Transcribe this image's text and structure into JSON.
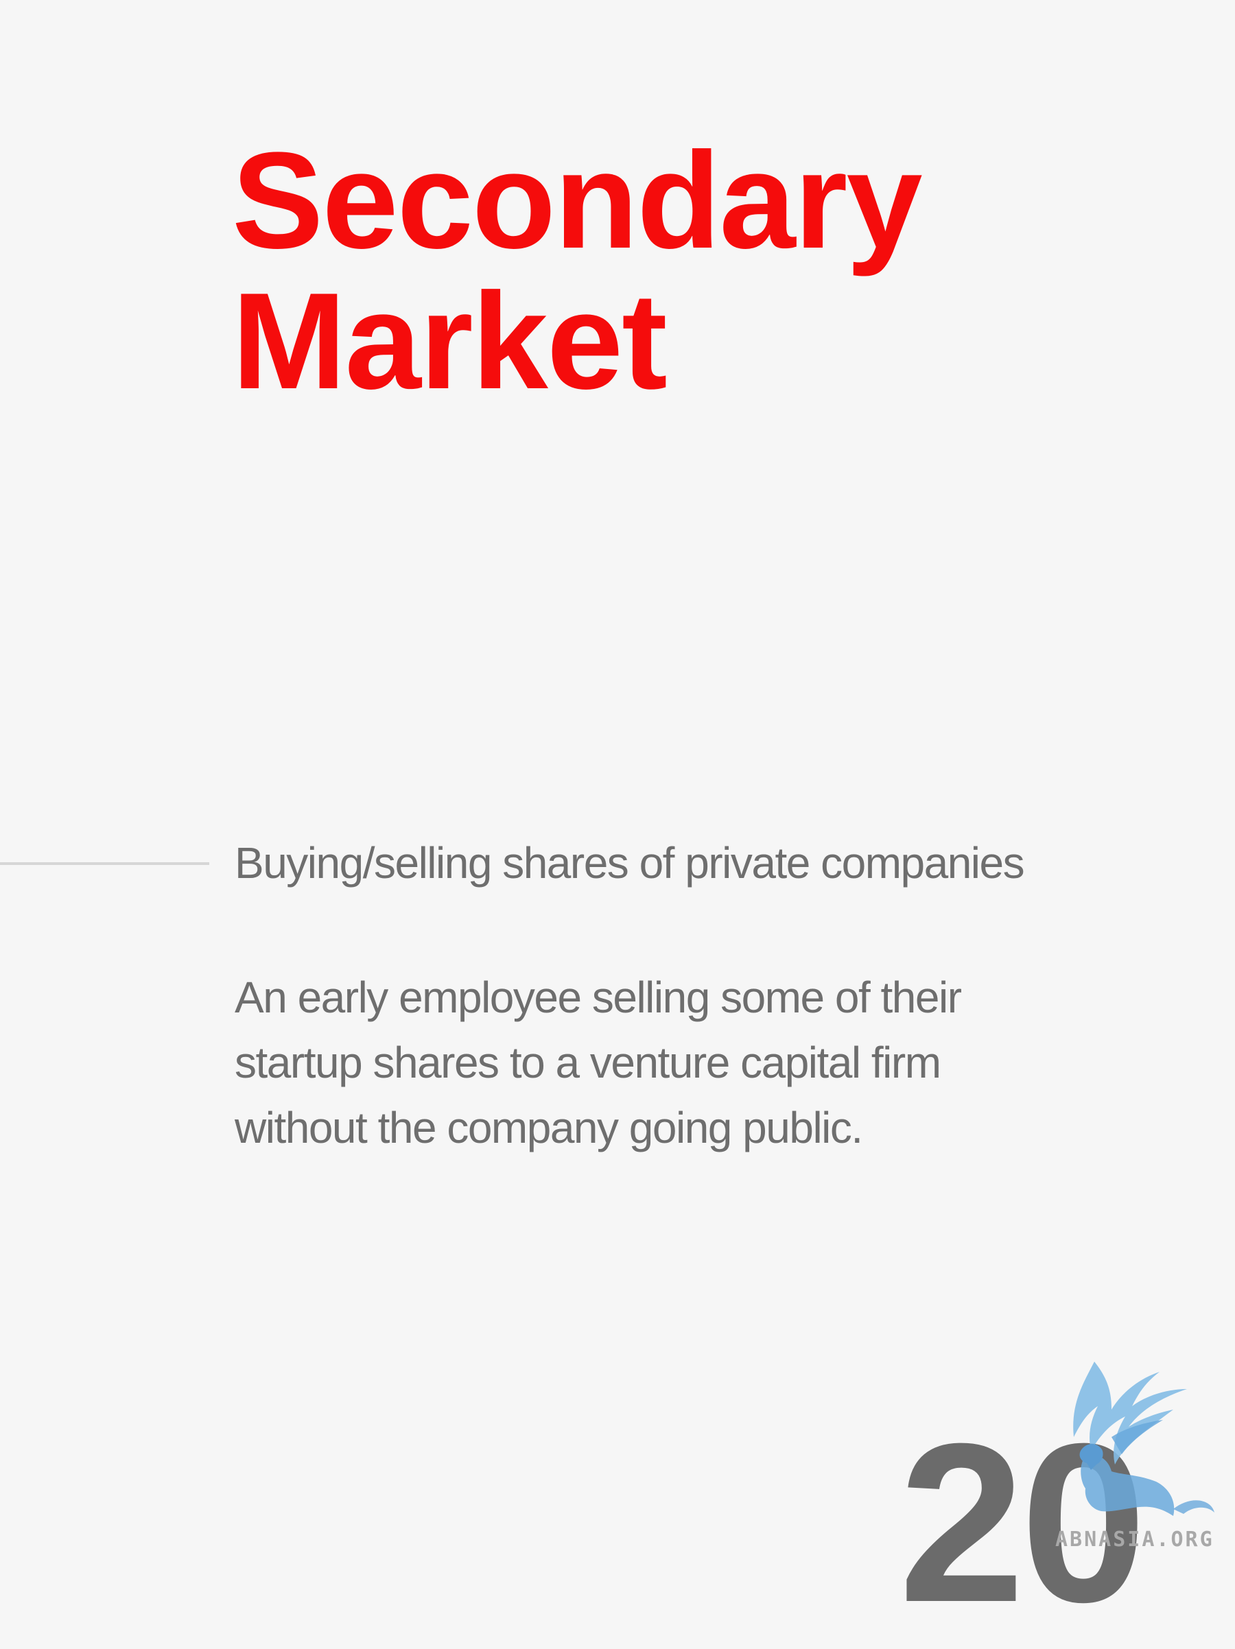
{
  "slide": {
    "title_lines": [
      "Secondary",
      "Market"
    ],
    "definition": "Buying/selling shares of private companies",
    "example_lines": [
      "An early employee selling some of their",
      "startup shares to a venture capital firm",
      "without the company going public."
    ],
    "page_number": "20"
  },
  "watermark": {
    "text": "ABNASIA.ORG",
    "icon": "griffin-logo-icon"
  },
  "colors": {
    "background": "#f6f6f6",
    "title": "#f50c0c",
    "body_text": "#6e6e6e",
    "page_number": "#6b6b6b",
    "logo": "#7fb9e3"
  }
}
